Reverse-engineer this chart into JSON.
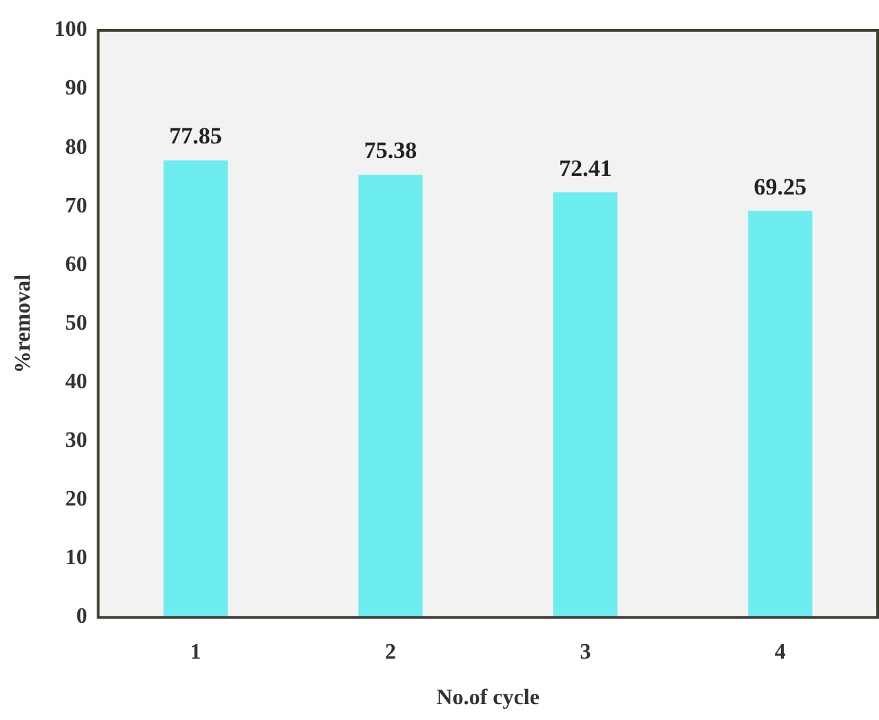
{
  "chart_data": {
    "type": "bar",
    "xlabel": "No.of cycle",
    "ylabel": "%removal",
    "categories": [
      "1",
      "2",
      "3",
      "4"
    ],
    "values": [
      77.85,
      75.38,
      72.41,
      69.25
    ],
    "color": "#6eedf0",
    "ylim": [
      0,
      100
    ],
    "yticks": [
      0,
      10,
      20,
      30,
      40,
      50,
      60,
      70,
      80,
      90,
      100
    ],
    "grid": false,
    "legend": false,
    "data_labels": true
  }
}
